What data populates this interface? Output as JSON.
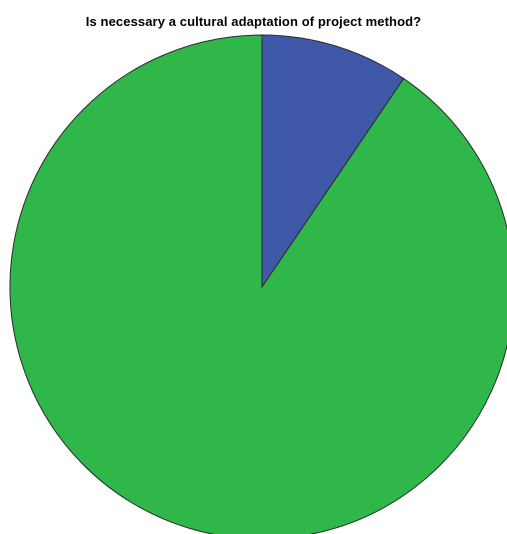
{
  "chart_data": {
    "type": "pie",
    "title": "Is necessary a cultural adaptation of project method?",
    "start": "top",
    "direction": "clockwise",
    "slices": [
      {
        "value": 9.5,
        "color": "#3f58a8"
      },
      {
        "value": 90.5,
        "color": "#30b74a"
      }
    ],
    "outline_color": "#2b2b2b"
  }
}
